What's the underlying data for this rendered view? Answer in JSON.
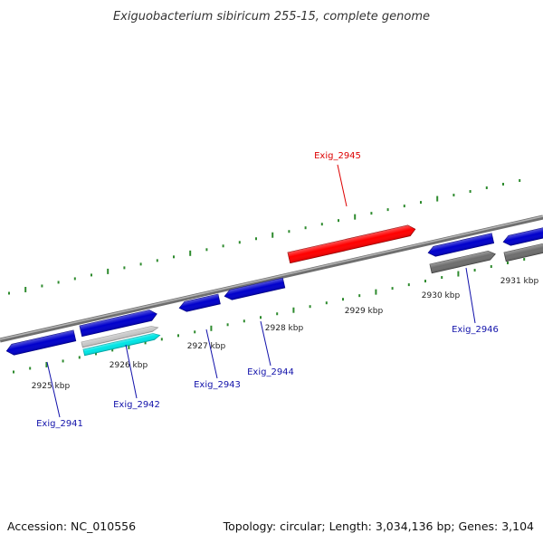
{
  "title": "Exiguobacterium sibiricum 255-15, complete genome",
  "footer": {
    "accession": "Accession: NC_010556",
    "topology": "Topology: circular; Length: 3,034,136 bp; Genes: 3,104"
  },
  "colors": {
    "highlight": "#ff0000",
    "gene_forward": "#1414e6",
    "gene_reverse": "#0000cc",
    "gene_other": "#555555",
    "cyan": "#00e5e5",
    "backbone": "#888888",
    "tick": "#2e8b2e",
    "label_blue": "#1111aa",
    "label_red": "#dd0000"
  },
  "ticks": [
    {
      "label": "2925 kbp"
    },
    {
      "label": "2926 kbp"
    },
    {
      "label": "2927 kbp"
    },
    {
      "label": "2928 kbp"
    },
    {
      "label": "2929 kbp"
    },
    {
      "label": "2930 kbp"
    },
    {
      "label": "2931 kbp"
    }
  ],
  "genes": [
    {
      "name": "Exig_2941",
      "highlight": false
    },
    {
      "name": "Exig_2942",
      "highlight": false
    },
    {
      "name": "Exig_2943",
      "highlight": false
    },
    {
      "name": "Exig_2944",
      "highlight": false
    },
    {
      "name": "Exig_2945",
      "highlight": true
    },
    {
      "name": "Exig_2946",
      "highlight": false
    }
  ]
}
